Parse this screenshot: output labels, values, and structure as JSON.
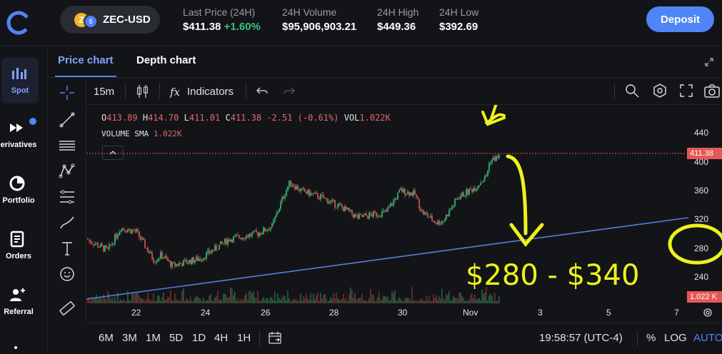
{
  "header": {
    "pair": "ZEC-USD",
    "coin_badge_1": "Z",
    "coin_badge_2": "$",
    "stats": [
      {
        "label": "Last Price (24H)",
        "value": "$411.38",
        "change": "+1.60%"
      },
      {
        "label": "24H Volume",
        "value": "$95,906,903.21"
      },
      {
        "label": "24H High",
        "value": "$449.36"
      },
      {
        "label": "24H Low",
        "value": "$392.69"
      }
    ],
    "deposit_label": "Deposit"
  },
  "sidebar": {
    "items": [
      {
        "label": "Spot",
        "icon": "bar-chart-icon",
        "active": true
      },
      {
        "label": "erivatives",
        "icon": "fast-forward-icon"
      },
      {
        "label": "Portfolio",
        "icon": "pie-chart-icon"
      },
      {
        "label": "Orders",
        "icon": "document-icon"
      },
      {
        "label": "Referral",
        "icon": "add-user-icon"
      }
    ]
  },
  "tabs": [
    "Price chart",
    "Depth chart"
  ],
  "toolbar": {
    "interval": "15m",
    "indicators_label": "Indicators"
  },
  "legend": {
    "o_label": "O",
    "o": "413.89",
    "h_label": "H",
    "h": "414.70",
    "l_label": "L",
    "l": "411.01",
    "c_label": "C",
    "c": "411.38",
    "change": "-2.51 (-0.61%)",
    "vol_label": "VOL",
    "vol": "1.022K",
    "sma_label": "VOLUME SMA",
    "sma": "1.022K"
  },
  "y_axis": [
    "440",
    "400",
    "360",
    "320",
    "280",
    "240"
  ],
  "price_badge": "411.38",
  "volume_badge": "1.022 K",
  "x_axis": [
    "22",
    "24",
    "26",
    "28",
    "30",
    "Nov",
    "3",
    "5",
    "7"
  ],
  "bottom": {
    "timeframes": [
      "6M",
      "3M",
      "1M",
      "5D",
      "1D",
      "4H",
      "1H"
    ],
    "clock": "19:58:57 (UTC-4)",
    "percent": "%",
    "log": "LOG",
    "auto": "AUTO"
  },
  "annotation": {
    "text": "$280 - $340",
    "color": "#eef21a"
  },
  "colors": {
    "accent": "#4f85f6",
    "up": "#39c07b",
    "down": "#e45858",
    "background": "#131418"
  }
}
